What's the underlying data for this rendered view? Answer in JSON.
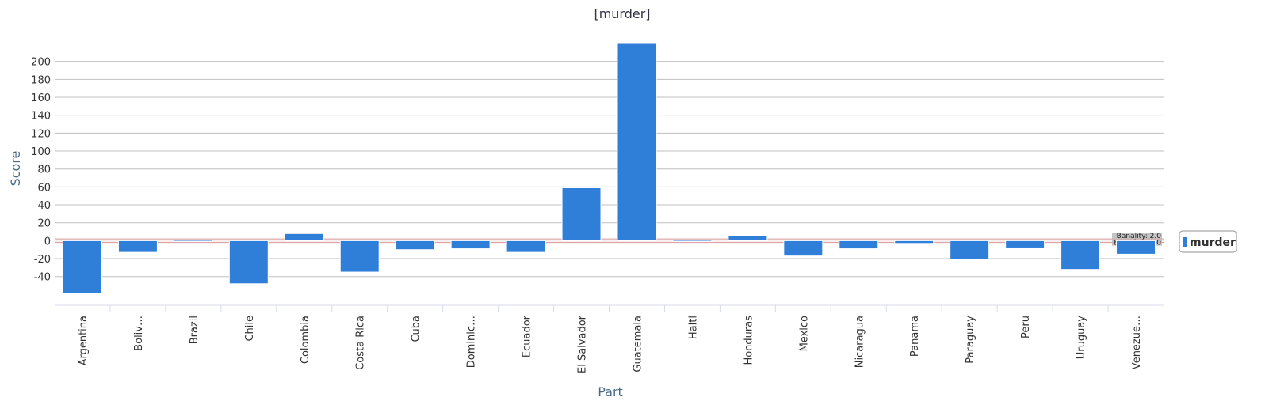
{
  "chart_data": {
    "type": "bar",
    "title": "[murder]",
    "xlabel": "Part",
    "ylabel": "Score",
    "categories": [
      "Argentina",
      "Boliv…",
      "Brazil",
      "Chile",
      "Colombia",
      "Costa Rica",
      "Cuba",
      "Dominic…",
      "Ecuador",
      "El Salvador",
      "Guatemala",
      "Haiti",
      "Honduras",
      "Mexico",
      "Nicaragua",
      "Panama",
      "Paraguay",
      "Peru",
      "Uruguay",
      "Venezue…"
    ],
    "series": [
      {
        "name": "murder",
        "values": [
          -59,
          -13,
          0,
          -48,
          8,
          -35,
          -10,
          -9,
          -13,
          59,
          220,
          0,
          6,
          -17,
          -9,
          -3,
          -21,
          -8,
          -32,
          -15
        ]
      }
    ],
    "yticks": [
      -40,
      -20,
      0,
      20,
      40,
      60,
      80,
      100,
      120,
      140,
      160,
      180,
      200
    ],
    "ylim": [
      -72,
      220
    ],
    "grid": true,
    "legend_position": "right",
    "color": "#2f7ed8",
    "reference_bands": [
      {
        "label": "Banality: 2.0",
        "value": 2.0
      },
      {
        "label": "Banality: -2.0",
        "value": -2.0
      }
    ]
  }
}
